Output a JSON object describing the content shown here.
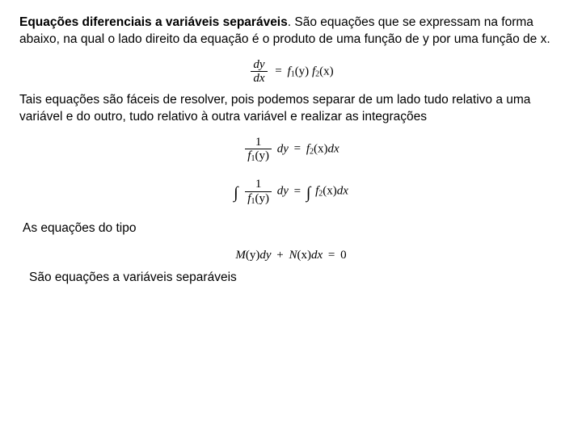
{
  "page": {
    "background_color": "#ffffff",
    "text_color": "#000000",
    "body_font_family": "Arial",
    "body_font_size_pt": 12,
    "eq_font_family": "Times New Roman",
    "eq_font_size_pt": 11
  },
  "heading": {
    "title": "Equações diferenciais a variáveis separáveis",
    "rest": ". São equações que se expressam na forma abaixo, na qual o lado direito da equação é o produto de uma função de y por uma função de x."
  },
  "eq1": {
    "frac_num": "dy",
    "frac_den": "dx",
    "op": "=",
    "rhs_f1": "f",
    "rhs_sub1": "1",
    "rhs_arg1": "(y)",
    "rhs_f2": "f",
    "rhs_sub2": "2",
    "rhs_arg2": "(x)"
  },
  "para2": "Tais equações são fáceis de resolver, pois podemos separar de um lado tudo relativo a uma variável e do outro, tudo relativo à outra variável e realizar as integrações",
  "eq2": {
    "frac_num": "1",
    "frac_den_f": "f",
    "frac_den_sub": "1",
    "frac_den_arg": "(y)",
    "dy": "dy",
    "op": "=",
    "rhs_f": "f",
    "rhs_sub": "2",
    "rhs_arg": "(x)",
    "dx": "dx"
  },
  "eq3": {
    "int_l": "∫",
    "frac_num": "1",
    "frac_den_f": "f",
    "frac_den_sub": "1",
    "frac_den_arg": "(y)",
    "dy": "dy",
    "op": "=",
    "int_r": "∫",
    "rhs_f": "f",
    "rhs_sub": "2",
    "rhs_arg": "(x)",
    "dx": "dx"
  },
  "para3": "As equações do tipo",
  "eq4": {
    "M": "M",
    "argM": "(y)",
    "dy": "dy",
    "plus": "+",
    "N": "N",
    "argN": "(x)",
    "dx": "dx",
    "eq": "=",
    "zero": "0"
  },
  "para4": "São equações a variáveis separáveis"
}
